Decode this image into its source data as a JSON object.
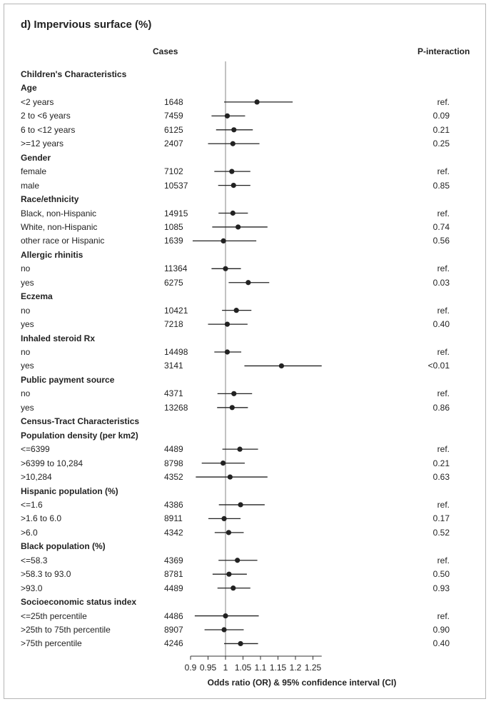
{
  "chart_data": {
    "type": "forest",
    "title": "d) Impervious surface (%)",
    "column_headers": {
      "cases": "Cases",
      "p_interaction": "P-interaction"
    },
    "xlabel": "Odds ratio (OR) & 95% confidence interval (CI)",
    "xlim": [
      0.9,
      1.275
    ],
    "reference_line": 1,
    "xticks": [
      "0.9",
      "0.95",
      "1",
      "1.05",
      "1.1",
      "1.15",
      "1.2",
      "1.25"
    ],
    "rows": [
      {
        "label": "Children's Characteristics",
        "header": true
      },
      {
        "label": "Age",
        "header": true
      },
      {
        "label": "<2 years",
        "cases": "1648",
        "or": 1.09,
        "lo": 0.996,
        "hi": 1.192,
        "p": "ref."
      },
      {
        "label": "2 to <6 years",
        "cases": "7459",
        "or": 1.005,
        "lo": 0.96,
        "hi": 1.056,
        "p": "0.09"
      },
      {
        "label": "6 to <12 years",
        "cases": "6125",
        "or": 1.024,
        "lo": 0.973,
        "hi": 1.078,
        "p": "0.21"
      },
      {
        "label": ">=12 years",
        "cases": "2407",
        "or": 1.021,
        "lo": 0.95,
        "hi": 1.097,
        "p": "0.25"
      },
      {
        "label": "Gender",
        "header": true
      },
      {
        "label": "female",
        "cases": "7102",
        "or": 1.018,
        "lo": 0.968,
        "hi": 1.071,
        "p": "ref."
      },
      {
        "label": "male",
        "cases": "10537",
        "or": 1.023,
        "lo": 0.979,
        "hi": 1.071,
        "p": "0.85"
      },
      {
        "label": "Race/ethnicity",
        "header": true
      },
      {
        "label": "Black, non-Hispanic",
        "cases": "14915",
        "or": 1.021,
        "lo": 0.98,
        "hi": 1.064,
        "p": "ref."
      },
      {
        "label": "White, non-Hispanic",
        "cases": "1085",
        "or": 1.036,
        "lo": 0.962,
        "hi": 1.12,
        "p": "0.74"
      },
      {
        "label": "other race or Hispanic",
        "cases": "1639",
        "or": 0.994,
        "lo": 0.906,
        "hi": 1.088,
        "p": "0.56"
      },
      {
        "label": "Allergic rhinitis",
        "header": true
      },
      {
        "label": "no",
        "cases": "11364",
        "or": 1.0,
        "lo": 0.96,
        "hi": 1.044,
        "p": "ref."
      },
      {
        "label": "yes",
        "cases": "6275",
        "or": 1.065,
        "lo": 1.009,
        "hi": 1.125,
        "p": "0.03"
      },
      {
        "label": "Eczema",
        "header": true
      },
      {
        "label": "no",
        "cases": "10421",
        "or": 1.031,
        "lo": 0.99,
        "hi": 1.074,
        "p": "ref."
      },
      {
        "label": "yes",
        "cases": "7218",
        "or": 1.005,
        "lo": 0.95,
        "hi": 1.063,
        "p": "0.40"
      },
      {
        "label": "Inhaled steroid Rx",
        "header": true
      },
      {
        "label": "no",
        "cases": "14498",
        "or": 1.005,
        "lo": 0.968,
        "hi": 1.045,
        "p": "ref."
      },
      {
        "label": "yes",
        "cases": "3141",
        "or": 1.16,
        "lo": 1.054,
        "hi": 1.275,
        "p": "<0.01"
      },
      {
        "label": "Public payment source",
        "header": true
      },
      {
        "label": "no",
        "cases": "4371",
        "or": 1.024,
        "lo": 0.977,
        "hi": 1.076,
        "p": "ref."
      },
      {
        "label": "yes",
        "cases": "13268",
        "or": 1.019,
        "lo": 0.976,
        "hi": 1.064,
        "p": "0.86"
      },
      {
        "label": "Census-Tract Characteristics",
        "header": true
      },
      {
        "label": "Population density (per km2)",
        "header": true
      },
      {
        "label": "<=6399",
        "cases": "4489",
        "or": 1.041,
        "lo": 0.991,
        "hi": 1.093,
        "p": "ref."
      },
      {
        "label": ">6399 to 10,284",
        "cases": "8798",
        "or": 0.993,
        "lo": 0.932,
        "hi": 1.055,
        "p": "0.21"
      },
      {
        "label": ">10,284",
        "cases": "4352",
        "or": 1.013,
        "lo": 0.915,
        "hi": 1.12,
        "p": "0.63"
      },
      {
        "label": "Hispanic population (%)",
        "header": true
      },
      {
        "label": "<=1.6",
        "cases": "4386",
        "or": 1.043,
        "lo": 0.981,
        "hi": 1.112,
        "p": "ref."
      },
      {
        "label": ">1.6 to 6.0",
        "cases": "8911",
        "or": 0.996,
        "lo": 0.951,
        "hi": 1.043,
        "p": "0.17"
      },
      {
        "label": ">6.0",
        "cases": "4342",
        "or": 1.009,
        "lo": 0.969,
        "hi": 1.052,
        "p": "0.52"
      },
      {
        "label": "Black population (%)",
        "header": true
      },
      {
        "label": "<=58.3",
        "cases": "4369",
        "or": 1.034,
        "lo": 0.98,
        "hi": 1.091,
        "p": "ref."
      },
      {
        "label": ">58.3 to 93.0",
        "cases": "8781",
        "or": 1.01,
        "lo": 0.963,
        "hi": 1.061,
        "p": "0.50"
      },
      {
        "label": ">93.0",
        "cases": "4489",
        "or": 1.022,
        "lo": 0.977,
        "hi": 1.071,
        "p": "0.93"
      },
      {
        "label": "Socioeconomic status index",
        "header": true
      },
      {
        "label": "<=25th percentile",
        "cases": "4486",
        "or": 1.0,
        "lo": 0.912,
        "hi": 1.095,
        "p": "ref."
      },
      {
        "label": ">25th to 75th percentile",
        "cases": "8907",
        "or": 0.996,
        "lo": 0.94,
        "hi": 1.052,
        "p": "0.90"
      },
      {
        "label": ">75th percentile",
        "cases": "4246",
        "or": 1.043,
        "lo": 0.996,
        "hi": 1.093,
        "p": "0.40"
      }
    ]
  }
}
